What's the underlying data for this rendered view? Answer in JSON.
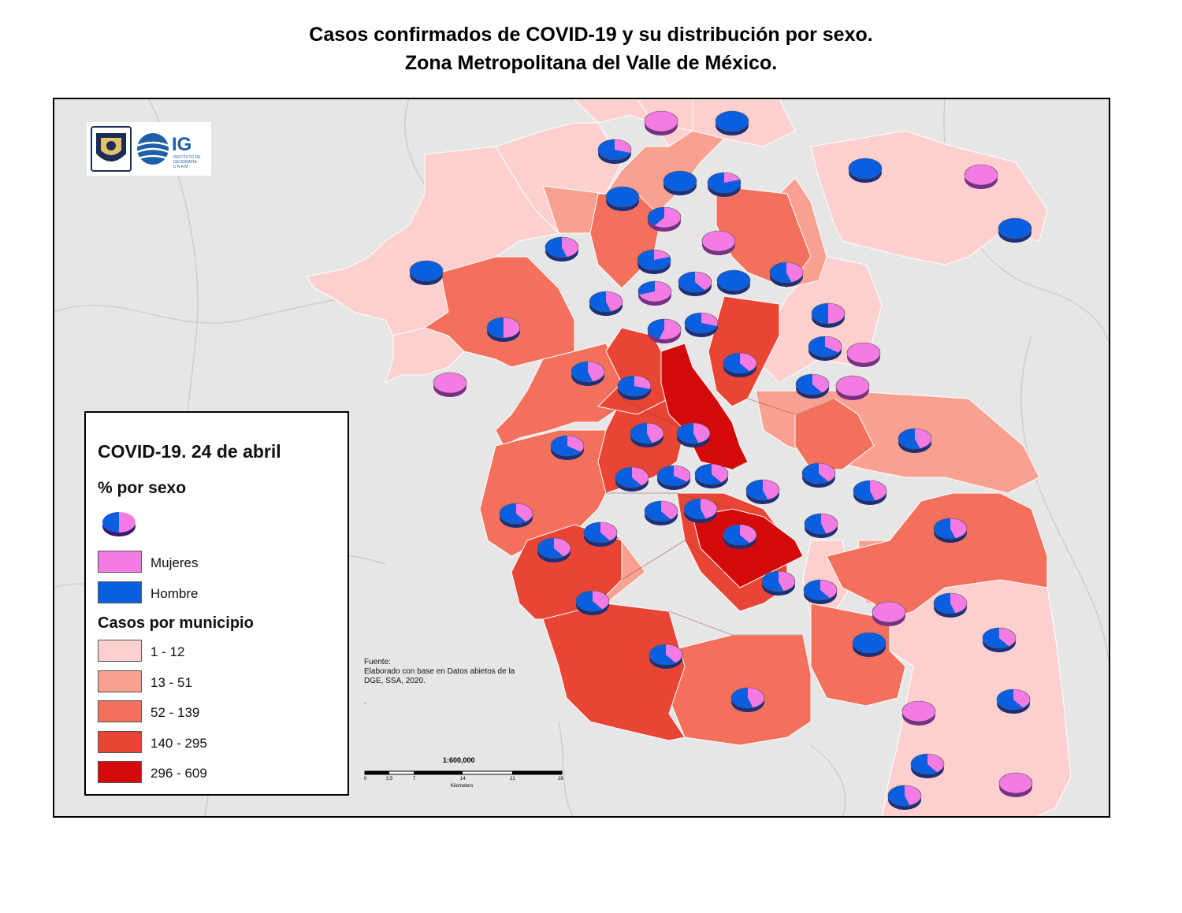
{
  "title_line1": "Casos confirmados de COVID-19 y su distribución por sexo.",
  "title_line2": "Zona Metropolitana del Valle de México.",
  "logo": {
    "text": "IG",
    "subtitle": [
      "INSTITUTO DE",
      "GEOGRAFÍA",
      "U N A M"
    ],
    "emblem_icon": "unam-shield-icon",
    "globe_icon": "ig-globe-icon"
  },
  "legend": {
    "title": "COVID-19. 24 de abril",
    "pie_heading": "% por sexo",
    "sex_categories": [
      {
        "label": "Mujeres",
        "color": "#f47be4"
      },
      {
        "label": "Hombre",
        "color": "#0a5fe0"
      }
    ],
    "cases_heading": "Casos por municipio",
    "classes": [
      {
        "label": "1 - 12",
        "color": "#fcd0cf"
      },
      {
        "label": "13 - 51",
        "color": "#f9a191"
      },
      {
        "label": "52 - 139",
        "color": "#f2705c"
      },
      {
        "label": "140 - 295",
        "color": "#e84535"
      },
      {
        "label": "296 - 609",
        "color": "#d40a0a"
      }
    ]
  },
  "source": {
    "label": "Fuente:",
    "lines": [
      "Elaborado con base en Datos abietos de la",
      "DGE, SSA, 2020."
    ],
    "extra": "."
  },
  "scale": {
    "ratio": "1:600,000",
    "ticks": [
      "0",
      "3.5",
      "7",
      "14",
      "21",
      "28"
    ],
    "unit": "Kilometers"
  },
  "colors": {
    "background": "#e6e6e6",
    "border": "#000000"
  }
}
